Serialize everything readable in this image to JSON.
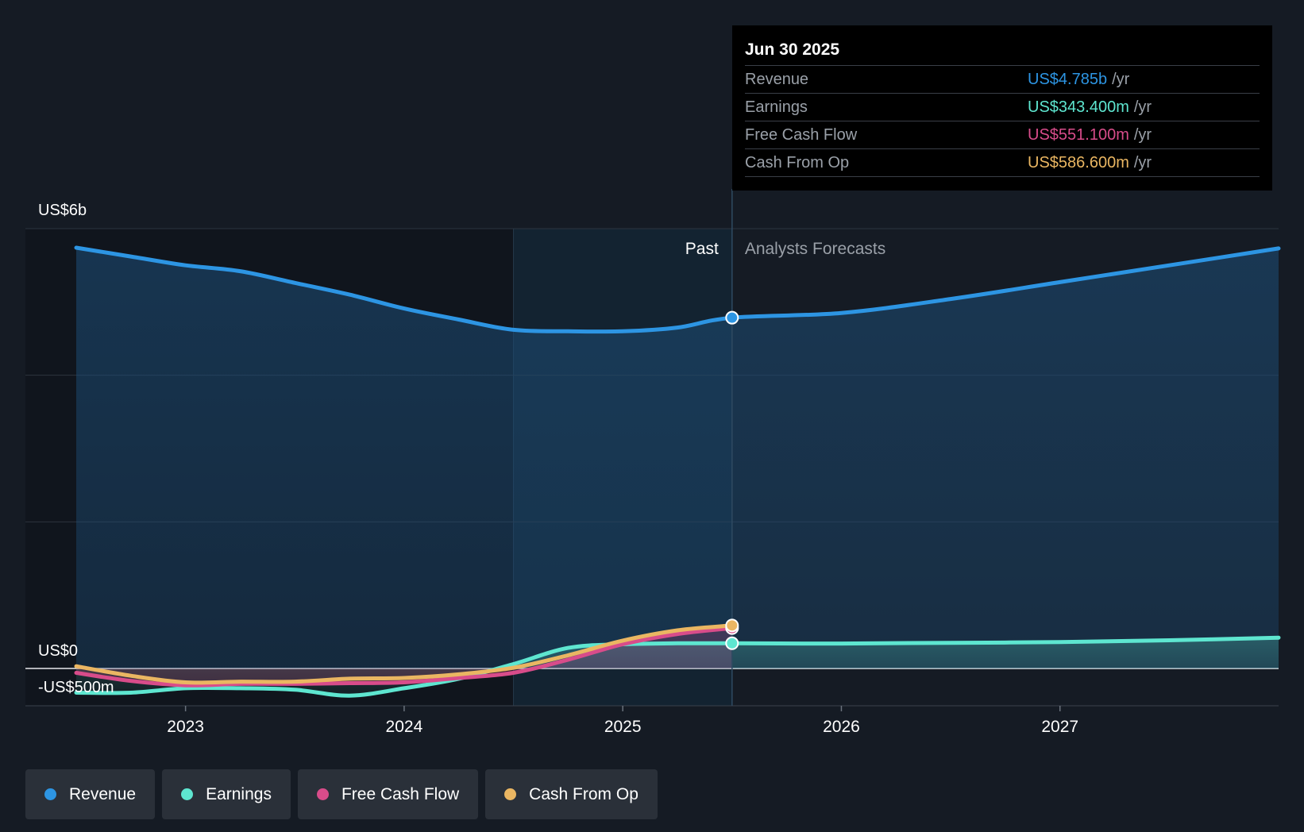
{
  "colors": {
    "revenue": "#2d95e3",
    "earnings": "#5ee6d0",
    "fcf": "#d84c8a",
    "cfo": "#eab662",
    "background": "#151b24"
  },
  "tooltip": {
    "date": "Jun 30 2025",
    "rows": [
      {
        "label": "Revenue",
        "value": "US$4.785b",
        "unit": "/yr"
      },
      {
        "label": "Earnings",
        "value": "US$343.400m",
        "unit": "/yr"
      },
      {
        "label": "Free Cash Flow",
        "value": "US$551.100m",
        "unit": "/yr"
      },
      {
        "label": "Cash From Op",
        "value": "US$586.600m",
        "unit": "/yr"
      }
    ]
  },
  "legend": [
    {
      "label": "Revenue"
    },
    {
      "label": "Earnings"
    },
    {
      "label": "Free Cash Flow"
    },
    {
      "label": "Cash From Op"
    }
  ],
  "chart_data": {
    "type": "line",
    "y_axis_labels": {
      "top": "US$6b",
      "zero": "US$0",
      "bottom": "-US$500m"
    },
    "y_range": [
      -500,
      6000
    ],
    "y_gridlines": [
      0,
      2000,
      4000,
      6000
    ],
    "x_range": [
      2022.5,
      2028.0
    ],
    "x_ticks": [
      {
        "value": 2023,
        "label": "2023"
      },
      {
        "value": 2024,
        "label": "2024"
      },
      {
        "value": 2025,
        "label": "2025"
      },
      {
        "value": 2026,
        "label": "2026"
      },
      {
        "value": 2027,
        "label": "2027"
      }
    ],
    "past_label": "Past",
    "forecast_label": "Analysts Forecasts",
    "past_end": 2025.5,
    "highlight_start": 2024.5,
    "series": [
      {
        "name": "Revenue",
        "key": "revenue",
        "past": [
          [
            2022.5,
            5740
          ],
          [
            2022.75,
            5620
          ],
          [
            2023.0,
            5500
          ],
          [
            2023.25,
            5420
          ],
          [
            2023.5,
            5260
          ],
          [
            2023.75,
            5100
          ],
          [
            2024.0,
            4910
          ],
          [
            2024.25,
            4760
          ],
          [
            2024.5,
            4620
          ],
          [
            2024.75,
            4600
          ],
          [
            2025.0,
            4600
          ],
          [
            2025.25,
            4650
          ],
          [
            2025.5,
            4785
          ]
        ],
        "forecast": [
          [
            2025.5,
            4785
          ],
          [
            2026.0,
            4850
          ],
          [
            2026.5,
            5040
          ],
          [
            2027.0,
            5270
          ],
          [
            2027.5,
            5500
          ],
          [
            2028.0,
            5730
          ]
        ]
      },
      {
        "name": "Earnings",
        "key": "earnings",
        "past": [
          [
            2022.5,
            -330
          ],
          [
            2022.75,
            -330
          ],
          [
            2023.0,
            -270
          ],
          [
            2023.25,
            -270
          ],
          [
            2023.5,
            -290
          ],
          [
            2023.75,
            -370
          ],
          [
            2024.0,
            -270
          ],
          [
            2024.25,
            -140
          ],
          [
            2024.5,
            60
          ],
          [
            2024.75,
            280
          ],
          [
            2025.0,
            330
          ],
          [
            2025.25,
            343
          ],
          [
            2025.5,
            343.4
          ]
        ],
        "forecast": [
          [
            2025.5,
            343.4
          ],
          [
            2026.0,
            340
          ],
          [
            2026.5,
            350
          ],
          [
            2027.0,
            360
          ],
          [
            2027.5,
            385
          ],
          [
            2028.0,
            420
          ]
        ]
      },
      {
        "name": "Free Cash Flow",
        "key": "fcf",
        "past": [
          [
            2022.5,
            -60
          ],
          [
            2022.75,
            -170
          ],
          [
            2023.0,
            -230
          ],
          [
            2023.25,
            -210
          ],
          [
            2023.5,
            -210
          ],
          [
            2023.75,
            -200
          ],
          [
            2024.0,
            -190
          ],
          [
            2024.25,
            -130
          ],
          [
            2024.5,
            -60
          ],
          [
            2024.75,
            120
          ],
          [
            2025.0,
            330
          ],
          [
            2025.25,
            470
          ],
          [
            2025.5,
            551.1
          ]
        ]
      },
      {
        "name": "Cash From Op",
        "key": "cfo",
        "past": [
          [
            2022.5,
            30
          ],
          [
            2022.75,
            -100
          ],
          [
            2023.0,
            -190
          ],
          [
            2023.25,
            -180
          ],
          [
            2023.5,
            -180
          ],
          [
            2023.75,
            -140
          ],
          [
            2024.0,
            -130
          ],
          [
            2024.25,
            -80
          ],
          [
            2024.5,
            10
          ],
          [
            2024.75,
            180
          ],
          [
            2025.0,
            380
          ],
          [
            2025.25,
            520
          ],
          [
            2025.5,
            586.6
          ]
        ]
      }
    ]
  }
}
